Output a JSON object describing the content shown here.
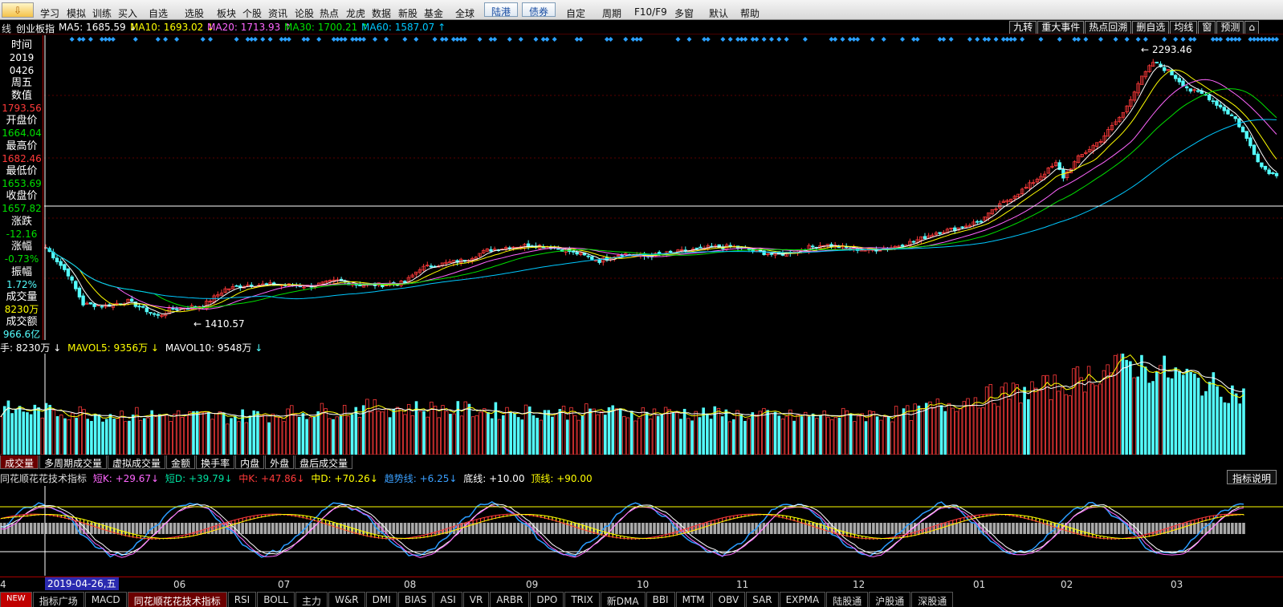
{
  "toolbar": {
    "icon_label": "⇩",
    "items": [
      "学习",
      "模拟",
      "训练",
      "买入",
      "自选",
      "选股",
      "板块",
      "个股",
      "资讯",
      "论股",
      "热点",
      "龙虎",
      "数据",
      "新股",
      "基金",
      "全球",
      "陆港",
      "债券",
      "自定",
      "周期",
      "F10/F9",
      "多窗",
      "默认",
      "帮助"
    ]
  },
  "info": {
    "prefix": "线",
    "index_name": "创业板指",
    "ma5": "MA5: 1685.59 ↓",
    "ma10": "MA10: 1693.02 ↓",
    "ma20": "MA20: 1713.93 ↑",
    "ma30": "MA30: 1700.21 ↑",
    "ma60": "MA60: 1587.07 ↑",
    "right_tabs": [
      "九转",
      "重大事件",
      "热点回溯",
      "删自选",
      "均线",
      "窗",
      "预测",
      "⌂"
    ]
  },
  "left_panel": {
    "time_label": "时间",
    "year": "2019",
    "date": "0426",
    "weekday": "周五",
    "value_label": "数值",
    "value": "1793.56",
    "open_label": "开盘价",
    "open": "1664.04",
    "high_label": "最高价",
    "high": "1682.46",
    "low_label": "最低价",
    "low": "1653.69",
    "close_label": "收盘价",
    "close": "1657.82",
    "change_label": "涨跌",
    "change": "-12.16",
    "pct_label": "涨幅",
    "pct": "-0.73%",
    "amp_label": "振幅",
    "amp": "1.72%",
    "vol_label": "成交量",
    "vol": "8230万",
    "amt_label": "成交额",
    "amt": "966.6亿"
  },
  "chart_data": {
    "type": "candlestick",
    "annotations": {
      "high": "2293.46",
      "low": "1410.57"
    },
    "ylim": [
      1340,
      2360
    ],
    "colors": {
      "up": "#ff3a3a",
      "down": "#54ffff",
      "ma5": "#ffffff",
      "ma10": "#ffff00",
      "ma20": "#ff66ff",
      "ma30": "#00e000",
      "ma60": "#00c8ff"
    },
    "anchors": [
      [
        0,
        1650
      ],
      [
        6,
        1560
      ],
      [
        10,
        1460
      ],
      [
        16,
        1455
      ],
      [
        22,
        1470
      ],
      [
        30,
        1420
      ],
      [
        34,
        1445
      ],
      [
        42,
        1455
      ],
      [
        48,
        1510
      ],
      [
        54,
        1525
      ],
      [
        62,
        1525
      ],
      [
        70,
        1520
      ],
      [
        78,
        1538
      ],
      [
        84,
        1525
      ],
      [
        90,
        1525
      ],
      [
        96,
        1532
      ],
      [
        100,
        1580
      ],
      [
        106,
        1595
      ],
      [
        112,
        1608
      ],
      [
        118,
        1640
      ],
      [
        124,
        1652
      ],
      [
        130,
        1658
      ],
      [
        136,
        1650
      ],
      [
        142,
        1630
      ],
      [
        148,
        1605
      ],
      [
        154,
        1630
      ],
      [
        160,
        1620
      ],
      [
        166,
        1630
      ],
      [
        172,
        1640
      ],
      [
        178,
        1650
      ],
      [
        184,
        1652
      ],
      [
        190,
        1635
      ],
      [
        196,
        1625
      ],
      [
        202,
        1645
      ],
      [
        208,
        1660
      ],
      [
        214,
        1648
      ],
      [
        220,
        1640
      ],
      [
        226,
        1650
      ],
      [
        232,
        1670
      ],
      [
        238,
        1700
      ],
      [
        244,
        1715
      ],
      [
        250,
        1740
      ],
      [
        256,
        1800
      ],
      [
        262,
        1850
      ],
      [
        266,
        1890
      ],
      [
        270,
        1930
      ],
      [
        272,
        1885
      ],
      [
        276,
        1950
      ],
      [
        282,
        2010
      ],
      [
        288,
        2100
      ],
      [
        292,
        2200
      ],
      [
        296,
        2270
      ],
      [
        300,
        2240
      ],
      [
        306,
        2175
      ],
      [
        310,
        2160
      ],
      [
        314,
        2120
      ],
      [
        318,
        2080
      ],
      [
        322,
        1990
      ],
      [
        325,
        1920
      ],
      [
        328,
        1895
      ]
    ],
    "volume": {
      "header_label": "手: 8230万",
      "mavol5": "MAVOL5: 9356万",
      "mavol10": "MAVOL10: 9548万",
      "anchors": [
        [
          0,
          7000
        ],
        [
          30,
          6200
        ],
        [
          60,
          5800
        ],
        [
          100,
          7200
        ],
        [
          140,
          6600
        ],
        [
          180,
          6400
        ],
        [
          210,
          5800
        ],
        [
          240,
          6300
        ],
        [
          256,
          8500
        ],
        [
          280,
          10500
        ],
        [
          298,
          14200
        ],
        [
          310,
          12500
        ],
        [
          328,
          9300
        ]
      ]
    },
    "indicator": {
      "name": "同花顺花花技术指标",
      "short_k": "短K: +29.67",
      "short_d": "短D: +39.79",
      "mid_k": "中K: +47.86",
      "mid_d": "中D: +70.26",
      "trend": "趋势线: +6.25",
      "bottom": "底线: +10.00",
      "top": "顶线: +90.00",
      "explain": "指标说明"
    },
    "dates": [
      "4",
      "06",
      "07",
      "08",
      "09",
      "10",
      "11",
      "12",
      "01",
      "02",
      "03"
    ],
    "current_date": "2019-04-26,五"
  },
  "volume_tabs": [
    "成交量",
    "多周期成交量",
    "虚拟成交量",
    "金额",
    "换手率",
    "内盘",
    "外盘",
    "盘后成交量"
  ],
  "bottom_tabs": [
    "NEW",
    "指标广场",
    "MACD",
    "同花顺花花技术指标",
    "RSI",
    "BOLL",
    "主力",
    "W&R",
    "DMI",
    "BIAS",
    "ASI",
    "VR",
    "ARBR",
    "DPO",
    "TRIX",
    "新DMA",
    "BBI",
    "MTM",
    "OBV",
    "SAR",
    "EXPMA",
    "陆股通",
    "沪股通",
    "深股通"
  ]
}
